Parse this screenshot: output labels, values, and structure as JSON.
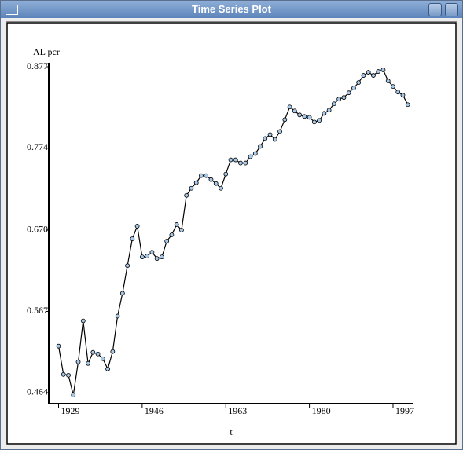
{
  "window": {
    "title": "Time Series Plot"
  },
  "chart_data": {
    "type": "line",
    "ylabel": "AL pcr",
    "xlabel": "t",
    "x": [
      1929,
      1930,
      1931,
      1932,
      1933,
      1934,
      1935,
      1936,
      1937,
      1938,
      1939,
      1940,
      1941,
      1942,
      1943,
      1944,
      1945,
      1946,
      1947,
      1948,
      1949,
      1950,
      1951,
      1952,
      1953,
      1954,
      1955,
      1956,
      1957,
      1958,
      1959,
      1960,
      1961,
      1962,
      1963,
      1964,
      1965,
      1966,
      1967,
      1968,
      1969,
      1970,
      1971,
      1972,
      1973,
      1974,
      1975,
      1976,
      1977,
      1978,
      1979,
      1980,
      1981,
      1982,
      1983,
      1984,
      1985,
      1986,
      1987,
      1988,
      1989,
      1990,
      1991,
      1992,
      1993,
      1994,
      1995,
      1996,
      1997,
      1998,
      1999,
      2000
    ],
    "series": [
      {
        "color": "#000000",
        "marker_color": "#a8c8e8",
        "values": [
          0.523,
          0.487,
          0.486,
          0.461,
          0.503,
          0.555,
          0.501,
          0.515,
          0.513,
          0.507,
          0.494,
          0.516,
          0.561,
          0.59,
          0.625,
          0.659,
          0.675,
          0.636,
          0.637,
          0.642,
          0.634,
          0.636,
          0.656,
          0.664,
          0.677,
          0.67,
          0.714,
          0.723,
          0.73,
          0.739,
          0.739,
          0.734,
          0.729,
          0.723,
          0.741,
          0.759,
          0.759,
          0.755,
          0.755,
          0.763,
          0.767,
          0.776,
          0.786,
          0.791,
          0.785,
          0.795,
          0.81,
          0.826,
          0.821,
          0.816,
          0.814,
          0.813,
          0.807,
          0.809,
          0.818,
          0.822,
          0.83,
          0.836,
          0.838,
          0.844,
          0.85,
          0.857,
          0.866,
          0.87,
          0.866,
          0.871,
          0.873,
          0.859,
          0.852,
          0.845,
          0.841,
          0.829
        ]
      }
    ],
    "xlim": [
      1927,
      2001
    ],
    "xticks": [
      1929,
      1946,
      1963,
      1980,
      1997
    ],
    "ylim": [
      0.452,
      0.88
    ],
    "yticks": [
      0.464,
      0.567,
      {
        "value": 0.67,
        "label": "0.670"
      },
      0.774,
      0.877
    ]
  }
}
